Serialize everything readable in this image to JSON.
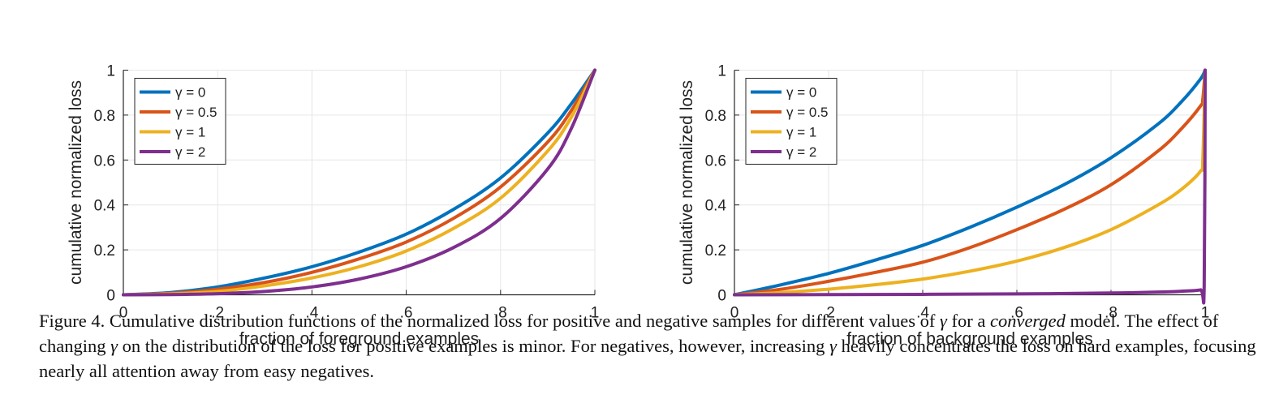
{
  "chart_data": [
    {
      "type": "line",
      "xlabel": "fraction of foreground examples",
      "ylabel": "cumulative normalized loss",
      "xlim": [
        0,
        1
      ],
      "ylim": [
        0,
        1
      ],
      "xticks": [
        0,
        0.2,
        0.4,
        0.6,
        0.8,
        1
      ],
      "xtick_labels": [
        "0",
        ".2",
        ".4",
        ".6",
        ".8",
        "1"
      ],
      "yticks": [
        0,
        0.2,
        0.4,
        0.6,
        0.8,
        1
      ],
      "ytick_labels": [
        "0",
        "0.2",
        "0.4",
        "0.6",
        "0.8",
        "1"
      ],
      "grid": true,
      "legend_position": "top-left",
      "series": [
        {
          "name": "γ = 0",
          "color": "#0072BD",
          "x": [
            0,
            0.1,
            0.2,
            0.3,
            0.4,
            0.5,
            0.6,
            0.7,
            0.8,
            0.9,
            0.95,
            1
          ],
          "y": [
            0,
            0.01,
            0.035,
            0.075,
            0.125,
            0.19,
            0.27,
            0.38,
            0.52,
            0.72,
            0.85,
            1
          ]
        },
        {
          "name": "γ = 0.5",
          "color": "#D95319",
          "x": [
            0,
            0.1,
            0.2,
            0.3,
            0.4,
            0.5,
            0.6,
            0.7,
            0.8,
            0.9,
            0.95,
            1
          ],
          "y": [
            0,
            0.007,
            0.025,
            0.055,
            0.1,
            0.16,
            0.235,
            0.34,
            0.48,
            0.68,
            0.82,
            1
          ]
        },
        {
          "name": "γ = 1",
          "color": "#EDB120",
          "x": [
            0,
            0.1,
            0.2,
            0.3,
            0.4,
            0.5,
            0.6,
            0.7,
            0.8,
            0.9,
            0.95,
            1
          ],
          "y": [
            0,
            0.004,
            0.015,
            0.04,
            0.075,
            0.125,
            0.195,
            0.295,
            0.43,
            0.64,
            0.79,
            1
          ]
        },
        {
          "name": "γ = 2",
          "color": "#7E2F8E",
          "x": [
            0,
            0.1,
            0.2,
            0.3,
            0.4,
            0.5,
            0.6,
            0.7,
            0.8,
            0.9,
            0.95,
            1
          ],
          "y": [
            0,
            0.001,
            0.005,
            0.015,
            0.035,
            0.07,
            0.125,
            0.21,
            0.34,
            0.56,
            0.74,
            1
          ]
        }
      ]
    },
    {
      "type": "line",
      "xlabel": "fraction of background examples",
      "ylabel": "cumulative normalized loss",
      "xlim": [
        0,
        1
      ],
      "ylim": [
        0,
        1
      ],
      "xticks": [
        0,
        0.2,
        0.4,
        0.6,
        0.8,
        1
      ],
      "xtick_labels": [
        "0",
        ".2",
        ".4",
        ".6",
        ".8",
        "1"
      ],
      "yticks": [
        0,
        0.2,
        0.4,
        0.6,
        0.8,
        1
      ],
      "ytick_labels": [
        "0",
        "0.2",
        "0.4",
        "0.6",
        "0.8",
        "1"
      ],
      "grid": true,
      "legend_position": "top-left",
      "series": [
        {
          "name": "γ = 0",
          "color": "#0072BD",
          "x": [
            0,
            0.1,
            0.2,
            0.3,
            0.4,
            0.5,
            0.6,
            0.7,
            0.8,
            0.9,
            0.95,
            0.99,
            1
          ],
          "y": [
            0,
            0.045,
            0.095,
            0.155,
            0.22,
            0.3,
            0.39,
            0.49,
            0.61,
            0.76,
            0.86,
            0.96,
            1
          ]
        },
        {
          "name": "γ = 0.5",
          "color": "#D95319",
          "x": [
            0,
            0.1,
            0.2,
            0.3,
            0.4,
            0.5,
            0.6,
            0.7,
            0.8,
            0.9,
            0.95,
            0.99,
            0.995,
            1
          ],
          "y": [
            0,
            0.025,
            0.06,
            0.1,
            0.145,
            0.21,
            0.29,
            0.38,
            0.49,
            0.64,
            0.74,
            0.84,
            0.87,
            1
          ]
        },
        {
          "name": "γ = 1",
          "color": "#EDB120",
          "x": [
            0,
            0.1,
            0.2,
            0.3,
            0.4,
            0.5,
            0.6,
            0.7,
            0.8,
            0.9,
            0.95,
            0.99,
            0.995,
            1
          ],
          "y": [
            0,
            0.01,
            0.025,
            0.045,
            0.07,
            0.105,
            0.15,
            0.21,
            0.29,
            0.4,
            0.47,
            0.55,
            0.6,
            1
          ]
        },
        {
          "name": "γ = 2",
          "color": "#7E2F8E",
          "x": [
            0,
            0.2,
            0.4,
            0.6,
            0.8,
            0.9,
            0.95,
            0.99,
            0.998,
            1
          ],
          "y": [
            0,
            0.001,
            0.002,
            0.004,
            0.008,
            0.012,
            0.016,
            0.022,
            0.04,
            1
          ]
        }
      ]
    }
  ],
  "caption": {
    "part1": "Figure 4. Cumulative distribution functions of the normalized loss for positive and negative samples for different values of ",
    "gamma1": "γ",
    "part2": " for a ",
    "emph": "converged",
    "part3": " model. The effect of changing ",
    "gamma2": "γ",
    "part4": " on the distribution of the loss for positive examples is minor. For negatives, however, increasing ",
    "gamma3": "γ",
    "part5": " heavily concentrates the loss on hard examples, focusing nearly all attention away from easy negatives."
  }
}
